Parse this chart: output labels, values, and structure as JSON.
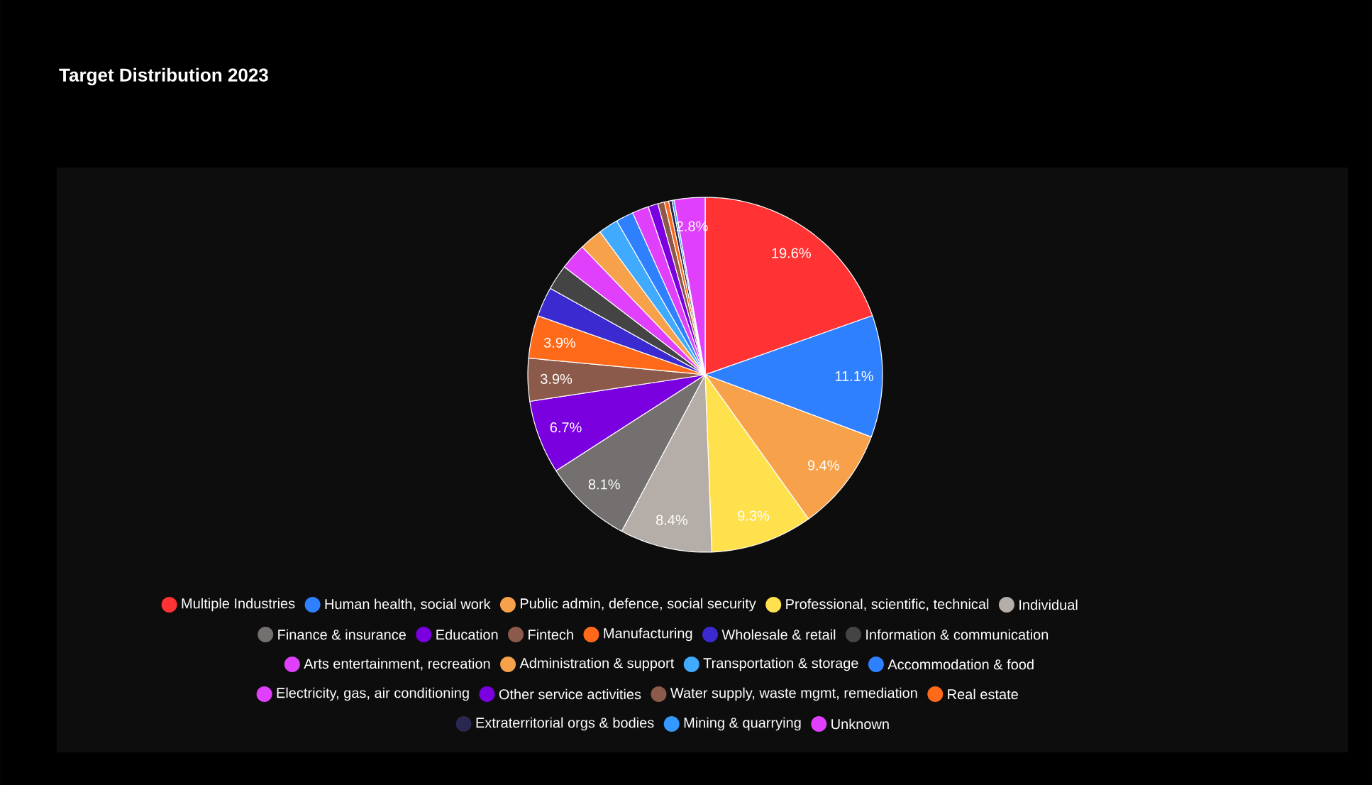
{
  "chart_data": {
    "type": "pie",
    "title": "Target Distribution 2023",
    "categories": [
      "Multiple Industries",
      "Human health, social work",
      "Public admin, defence, social security",
      "Professional, scientific, technical",
      "Individual",
      "Finance & insurance",
      "Education",
      "Fintech",
      "Manufacturing",
      "Wholesale & retail",
      "Information & communication",
      "Arts entertainment, recreation",
      "Administration & support",
      "Transportation & storage",
      "Accommodation & food",
      "Electricity, gas, air conditioning",
      "Other service activities",
      "Water supply, waste mgmt, remediation",
      "Real estate",
      "Extraterritorial orgs & bodies",
      "Mining & quarrying",
      "Unknown"
    ],
    "values": [
      19.6,
      11.1,
      9.4,
      9.3,
      8.4,
      8.1,
      6.7,
      3.9,
      3.9,
      2.7,
      2.3,
      2.4,
      2.1,
      1.8,
      1.6,
      1.5,
      0.9,
      0.6,
      0.4,
      0.3,
      0.2,
      2.8
    ],
    "value_labels": [
      "19.6%",
      "11.1%",
      "9.4%",
      "9.3%",
      "8.4%",
      "8.1%",
      "6.7%",
      "3.9%",
      "3.9%",
      null,
      null,
      null,
      null,
      null,
      null,
      null,
      null,
      null,
      null,
      null,
      null,
      "2.8%"
    ],
    "colors": [
      "#ff3333",
      "#2f80ff",
      "#f7a24a",
      "#ffe14d",
      "#b5aea8",
      "#757070",
      "#7b00e0",
      "#8b5a4a",
      "#ff6a1a",
      "#3a2ad0",
      "#444444",
      "#e040fb",
      "#f7a24a",
      "#40aaff",
      "#2f80ff",
      "#e040fb",
      "#7b00e0",
      "#8b5a4a",
      "#ff6a1a",
      "#2a2750",
      "#3399ff",
      "#e040fb"
    ],
    "legend": "bottom"
  }
}
